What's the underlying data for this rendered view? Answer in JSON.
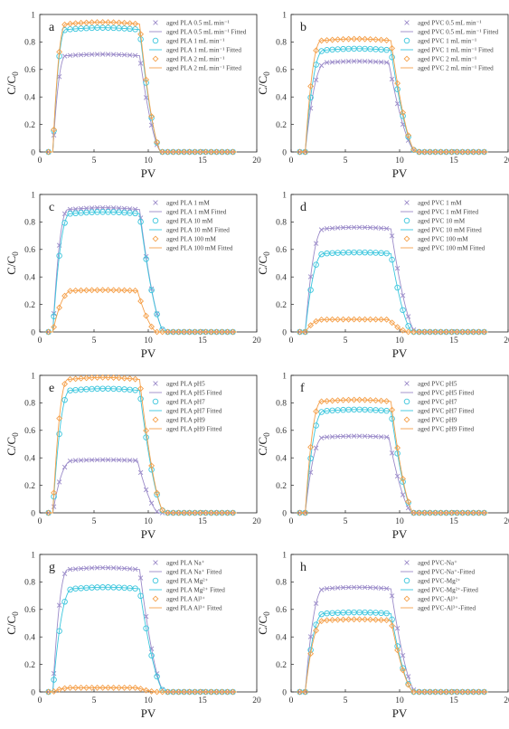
{
  "colors": {
    "series1": "#9b8bc9",
    "series2": "#3cc6dd",
    "series3": "#f5a04a",
    "fit_line": "#555555",
    "axis": "#222222"
  },
  "chart_data": [
    {
      "type": "line",
      "panel_label": "a",
      "xlabel": "PV",
      "ylabel": "C/C",
      "ylabel_sub": "0",
      "xlim": [
        0,
        20
      ],
      "ylim": [
        0,
        1
      ],
      "xticks": [
        "0",
        "5",
        "10",
        "15",
        "20"
      ],
      "yticks": [
        "0",
        "0.2",
        "0.4",
        "0.6",
        "0.8",
        "1"
      ],
      "legend_position": "top-right",
      "series": [
        {
          "name": "aged PLA 0.5 mL min⁻¹",
          "fit_name": "aged PLA 0.5 mL min⁻¹ Fitted",
          "marker": "x",
          "plateau": 0.7,
          "ramp_start": 1.2,
          "ramp_end": 2.4,
          "drop_start": 9.2,
          "drop_end": 11.2
        },
        {
          "name": "aged PLA 1 mL min⁻¹",
          "fit_name": "aged PLA 1 mL min⁻¹ Fitted",
          "marker": "o",
          "plateau": 0.89,
          "ramp_start": 1.2,
          "ramp_end": 2.4,
          "drop_start": 9.2,
          "drop_end": 11.2
        },
        {
          "name": "aged PLA 2 mL min⁻¹",
          "fit_name": "aged PLA 2 mL min⁻¹ Fitted",
          "marker": "d",
          "plateau": 0.93,
          "ramp_start": 1.2,
          "ramp_end": 2.4,
          "drop_start": 9.2,
          "drop_end": 11.2
        }
      ]
    },
    {
      "type": "line",
      "panel_label": "b",
      "xlabel": "PV",
      "ylabel": "C/C",
      "ylabel_sub": "0",
      "xlim": [
        0,
        20
      ],
      "ylim": [
        0,
        1
      ],
      "xticks": [
        "0",
        "5",
        "10",
        "15",
        "20"
      ],
      "yticks": [
        "0",
        "0.2",
        "0.4",
        "0.6",
        "0.8",
        "1"
      ],
      "legend_position": "top-right",
      "series": [
        {
          "name": "aged PVC 0.5 mL min⁻¹",
          "fit_name": "aged PVC 0.5 mL min⁻¹ Fitted",
          "marker": "x",
          "plateau": 0.65,
          "ramp_start": 1.3,
          "ramp_end": 3.2,
          "drop_start": 9.0,
          "drop_end": 11.5
        },
        {
          "name": "aged PVC 1 mL min⁻¹",
          "fit_name": "aged PVC 1 mL min⁻¹ Fitted",
          "marker": "o",
          "plateau": 0.74,
          "ramp_start": 1.3,
          "ramp_end": 3.0,
          "drop_start": 9.2,
          "drop_end": 11.5
        },
        {
          "name": "aged PVC 2 mL min⁻¹",
          "fit_name": "aged PVC 2 mL min⁻¹ Fitted",
          "marker": "d",
          "plateau": 0.81,
          "ramp_start": 1.3,
          "ramp_end": 2.8,
          "drop_start": 9.2,
          "drop_end": 11.5
        }
      ]
    },
    {
      "type": "line",
      "panel_label": "c",
      "xlabel": "PV",
      "ylabel": "C/C",
      "ylabel_sub": "0",
      "xlim": [
        0,
        20
      ],
      "ylim": [
        0,
        1
      ],
      "xticks": [
        "0",
        "5",
        "10",
        "15",
        "20"
      ],
      "yticks": [
        "0",
        "0.2",
        "0.4",
        "0.6",
        "0.8",
        "1"
      ],
      "legend_position": "top-right",
      "series": [
        {
          "name": "aged PLA 1 mM",
          "fit_name": "aged PLA 1 mM Fitted",
          "marker": "x",
          "plateau": 0.89,
          "ramp_start": 1.2,
          "ramp_end": 2.6,
          "drop_start": 9.2,
          "drop_end": 11.5
        },
        {
          "name": "aged PLA 10 mM",
          "fit_name": "aged PLA 10 mM Fitted",
          "marker": "o",
          "plateau": 0.86,
          "ramp_start": 1.2,
          "ramp_end": 2.8,
          "drop_start": 9.2,
          "drop_end": 11.5
        },
        {
          "name": "aged PLA 100 mM",
          "fit_name": "aged PLA 100 mM Fitted",
          "marker": "d",
          "plateau": 0.3,
          "ramp_start": 1.2,
          "ramp_end": 3.0,
          "drop_start": 9.0,
          "drop_end": 10.8
        }
      ]
    },
    {
      "type": "line",
      "panel_label": "d",
      "xlabel": "PV",
      "ylabel": "C/C",
      "ylabel_sub": "0",
      "xlim": [
        0,
        20
      ],
      "ylim": [
        0,
        1
      ],
      "xticks": [
        "0",
        "5",
        "10",
        "15",
        "20"
      ],
      "yticks": [
        "0",
        "0.2",
        "0.4",
        "0.6",
        "0.8",
        "1"
      ],
      "legend_position": "top-right",
      "series": [
        {
          "name": "aged PVC 1 mM",
          "fit_name": "aged PVC 1 mM Fitted",
          "marker": "x",
          "plateau": 0.75,
          "ramp_start": 1.3,
          "ramp_end": 3.0,
          "drop_start": 9.2,
          "drop_end": 11.5
        },
        {
          "name": "aged PVC 10 mM",
          "fit_name": "aged PVC 10 mM Fitted",
          "marker": "o",
          "plateau": 0.57,
          "ramp_start": 1.3,
          "ramp_end": 3.0,
          "drop_start": 9.2,
          "drop_end": 11.2
        },
        {
          "name": "aged PVC 100 mM",
          "fit_name": "aged PVC 100 mM Fitted",
          "marker": "d",
          "plateau": 0.09,
          "ramp_start": 1.3,
          "ramp_end": 3.0,
          "drop_start": 9.0,
          "drop_end": 10.8
        }
      ]
    },
    {
      "type": "line",
      "panel_label": "e",
      "xlabel": "PV",
      "ylabel": "C/C",
      "ylabel_sub": "0",
      "xlim": [
        0,
        20
      ],
      "ylim": [
        0,
        1
      ],
      "xticks": [
        "0",
        "5",
        "10",
        "15",
        "20"
      ],
      "yticks": [
        "0",
        "0.2",
        "0.4",
        "0.6",
        "0.8",
        "1"
      ],
      "legend_position": "top-right",
      "series": [
        {
          "name": "aged PLA pH5",
          "fit_name": "aged PLA pH5 Fitted",
          "marker": "x",
          "plateau": 0.38,
          "ramp_start": 1.2,
          "ramp_end": 3.0,
          "drop_start": 9.0,
          "drop_end": 11.0
        },
        {
          "name": "aged PLA pH7",
          "fit_name": "aged PLA pH7 Fitted",
          "marker": "o",
          "plateau": 0.89,
          "ramp_start": 1.2,
          "ramp_end": 2.8,
          "drop_start": 9.2,
          "drop_end": 11.5
        },
        {
          "name": "aged PLA pH9",
          "fit_name": "aged PLA pH9 Fitted",
          "marker": "d",
          "plateau": 0.97,
          "ramp_start": 1.2,
          "ramp_end": 2.6,
          "drop_start": 9.2,
          "drop_end": 11.5
        }
      ]
    },
    {
      "type": "line",
      "panel_label": "f",
      "xlabel": "PV",
      "ylabel": "C/C",
      "ylabel_sub": "0",
      "xlim": [
        0,
        20
      ],
      "ylim": [
        0,
        1
      ],
      "xticks": [
        "0",
        "5",
        "10",
        "15",
        "20"
      ],
      "yticks": [
        "0",
        "0.2",
        "0.4",
        "0.6",
        "0.8",
        "1"
      ],
      "legend_position": "top-right",
      "series": [
        {
          "name": "aged PVC pH5",
          "fit_name": "aged PVC pH5 Fitted",
          "marker": "x",
          "plateau": 0.55,
          "ramp_start": 1.3,
          "ramp_end": 3.0,
          "drop_start": 9.0,
          "drop_end": 11.2
        },
        {
          "name": "aged PVC pH7",
          "fit_name": "aged PVC pH7 Fitted",
          "marker": "o",
          "plateau": 0.74,
          "ramp_start": 1.3,
          "ramp_end": 3.0,
          "drop_start": 9.2,
          "drop_end": 11.3
        },
        {
          "name": "aged PVC pH9",
          "fit_name": "aged PVC pH9 Fitted",
          "marker": "d",
          "plateau": 0.81,
          "ramp_start": 1.3,
          "ramp_end": 2.8,
          "drop_start": 9.2,
          "drop_end": 11.3
        }
      ]
    },
    {
      "type": "line",
      "panel_label": "g",
      "xlabel": "PV",
      "ylabel": "C/C",
      "ylabel_sub": "0",
      "xlim": [
        0,
        20
      ],
      "ylim": [
        0,
        1
      ],
      "xticks": [
        "0",
        "5",
        "10",
        "15",
        "20"
      ],
      "yticks": [
        "0",
        "0.2",
        "0.4",
        "0.6",
        "0.8",
        "1"
      ],
      "legend_position": "top-right",
      "series": [
        {
          "name": "aged PLA Na⁺",
          "fit_name": "aged PLA Na⁺ Fitted",
          "marker": "x",
          "plateau": 0.89,
          "ramp_start": 1.2,
          "ramp_end": 2.6,
          "drop_start": 9.2,
          "drop_end": 11.5
        },
        {
          "name": "aged PLA Mg²⁺",
          "fit_name": "aged PLA Mg²⁺ Fitted",
          "marker": "o",
          "plateau": 0.75,
          "ramp_start": 1.2,
          "ramp_end": 3.0,
          "drop_start": 9.2,
          "drop_end": 11.5
        },
        {
          "name": "aged PLA Al³⁺",
          "fit_name": "aged PLA Al³⁺ Fitted",
          "marker": "d",
          "plateau": 0.03,
          "ramp_start": 1.2,
          "ramp_end": 3.0,
          "drop_start": 9.0,
          "drop_end": 10.8
        }
      ]
    },
    {
      "type": "line",
      "panel_label": "h",
      "xlabel": "PV",
      "ylabel": "C/C",
      "ylabel_sub": "0",
      "xlim": [
        0,
        20
      ],
      "ylim": [
        0,
        1
      ],
      "xticks": [
        "0",
        "5",
        "10",
        "15",
        "20"
      ],
      "yticks": [
        "0",
        "0.2",
        "0.4",
        "0.6",
        "0.8",
        "1"
      ],
      "legend_position": "top-right",
      "series": [
        {
          "name": "aged PVC-Na⁺",
          "fit_name": "aged PVC-Na⁺-Fitted",
          "marker": "x",
          "plateau": 0.75,
          "ramp_start": 1.3,
          "ramp_end": 3.0,
          "drop_start": 9.2,
          "drop_end": 11.5
        },
        {
          "name": "aged PVC-Mg²⁺",
          "fit_name": "aged PVC-Mg²⁺-Fitted",
          "marker": "o",
          "plateau": 0.57,
          "ramp_start": 1.3,
          "ramp_end": 3.0,
          "drop_start": 9.2,
          "drop_end": 11.3
        },
        {
          "name": "aged PVC-Al³⁺",
          "fit_name": "aged PVC-Al³⁺-Fitted",
          "marker": "d",
          "plateau": 0.52,
          "ramp_start": 1.3,
          "ramp_end": 3.0,
          "drop_start": 9.2,
          "drop_end": 11.3
        }
      ]
    }
  ]
}
